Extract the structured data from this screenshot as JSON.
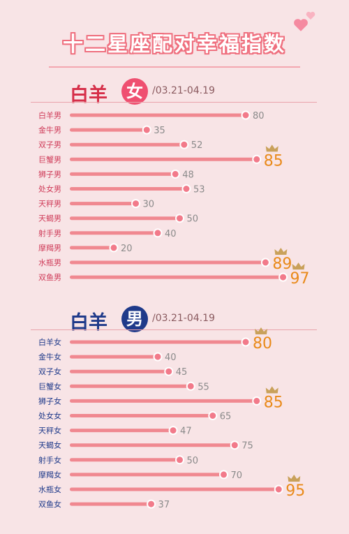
{
  "title": "十二星座配对幸福指数",
  "colors": {
    "bar": "#f08890",
    "dot": "#f27a8a",
    "value": "#8a8a8a",
    "highlight": "#e98a1a",
    "label_female": "#cf3d5a",
    "label_male": "#1f3a8a"
  },
  "sections": [
    {
      "name": "白羊",
      "badge": "女",
      "date_prefix": "/",
      "date": "03.21-04.19"
    },
    {
      "name": "白羊",
      "badge": "男",
      "date_prefix": "/",
      "date": "03.21-04.19"
    }
  ],
  "chart_data": [
    {
      "type": "bar",
      "orientation": "horizontal",
      "title": "",
      "xlim": [
        0,
        100
      ],
      "categories": [
        "白羊男",
        "金牛男",
        "双子男",
        "巨蟹男",
        "狮子男",
        "处女男",
        "天秤男",
        "天蝎男",
        "射手男",
        "摩羯男",
        "水瓶男",
        "双鱼男"
      ],
      "values": [
        80,
        35,
        52,
        85,
        48,
        53,
        30,
        50,
        40,
        20,
        89,
        97
      ],
      "crowned": [
        "巨蟹男",
        "水瓶男",
        "双鱼男"
      ],
      "grid": false
    },
    {
      "type": "bar",
      "orientation": "horizontal",
      "title": "",
      "xlim": [
        0,
        100
      ],
      "categories": [
        "白羊女",
        "金牛女",
        "双子女",
        "巨蟹女",
        "狮子女",
        "处女女",
        "天秤女",
        "天蝎女",
        "射手女",
        "摩羯女",
        "水瓶女",
        "双鱼女"
      ],
      "values": [
        80,
        40,
        45,
        55,
        85,
        65,
        47,
        75,
        50,
        70,
        95,
        37
      ],
      "crowned": [
        "白羊女",
        "狮子女",
        "水瓶女"
      ],
      "grid": false
    }
  ]
}
